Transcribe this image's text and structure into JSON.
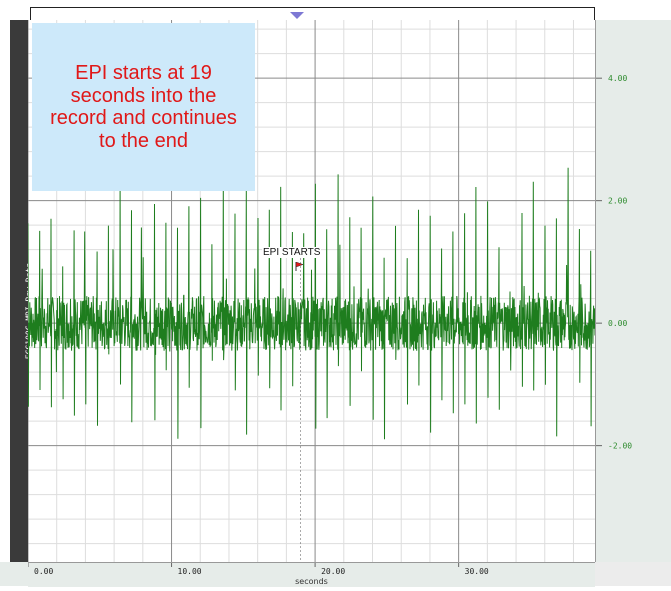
{
  "window": {
    "channel_label": "ECG100C-MRI Raw Data"
  },
  "annotation": {
    "callout_text": "EPI starts at 19 seconds into the record and continues to the end",
    "event_label": "EPI STARTS"
  },
  "colors": {
    "trace": "#1e7d1e",
    "callout_bg": "#cde9fa",
    "callout_text": "#e01818",
    "panel_bg": "#e6ece9",
    "tick_text": "#2e8b2e"
  },
  "chart_data": {
    "type": "line",
    "title": "",
    "xlabel": "seconds",
    "ylabel": "",
    "xlim": [
      0,
      39.5
    ],
    "ylim": [
      -3.9,
      4.95
    ],
    "x_ticks": [
      "0.00",
      "10.00",
      "20.00",
      "30.00"
    ],
    "y_ticks": [
      "4.00",
      "2.00",
      "0.00",
      "-2.00"
    ],
    "grid": true,
    "events": [
      {
        "x": 19,
        "label": "EPI STARTS"
      }
    ],
    "series": [
      {
        "x": [
          0.0,
          1.0,
          2.0,
          3.0,
          4.0,
          5.0,
          6.0,
          7.0,
          8.0,
          9.0,
          10.0,
          11.0,
          12.0,
          13.0,
          14.0,
          15.0,
          16.0,
          17.0,
          18.0,
          19.0,
          20.0,
          21.0,
          22.0,
          23.0,
          24.0,
          25.0,
          26.0,
          27.0,
          28.0,
          29.0,
          30.0,
          31.0,
          32.0,
          33.0,
          34.0,
          35.0,
          36.0,
          37.0,
          38.0,
          39.0
        ],
        "y": [
          -0.2,
          1.9,
          -1.7,
          0.3,
          2.0,
          -0.6,
          1.5,
          -0.3,
          2.1,
          -1.0,
          -0.4,
          1.8,
          -1.6,
          2.0,
          0.5,
          -0.8,
          1.7,
          -0.5,
          1.9,
          -0.7,
          1.4,
          -0.9,
          2.5,
          -0.6,
          1.6,
          -1.3,
          1.9,
          -1.9,
          1.3,
          0.8,
          -0.7,
          1.7,
          -1.0,
          1.8,
          -0.2,
          2.0,
          -0.9,
          1.6,
          2.0,
          -0.8
        ]
      }
    ]
  }
}
